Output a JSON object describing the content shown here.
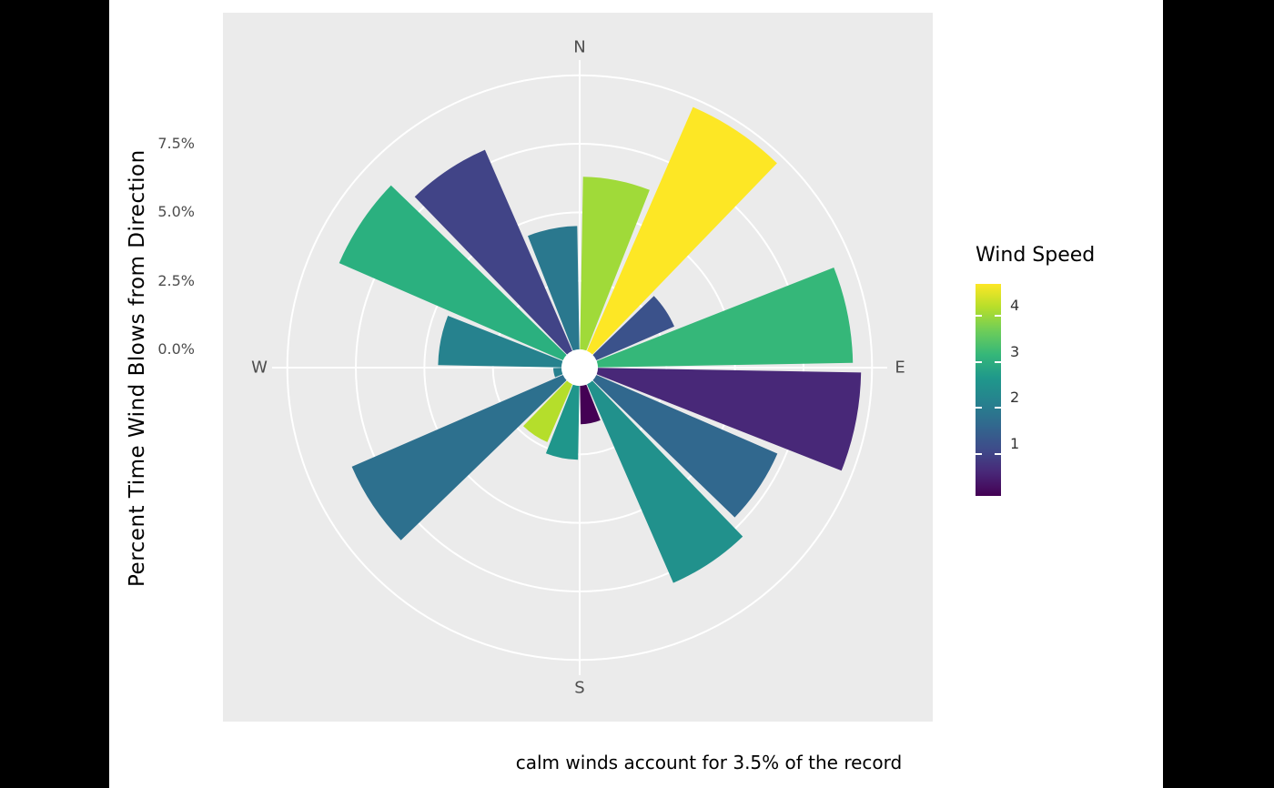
{
  "figure": {
    "background": "#000000",
    "canvas_background": "#FFFFFF",
    "panel_background": "#EBEBEB",
    "grid_color": "#FFFFFF",
    "axis_text_color": "#4D4D4D"
  },
  "chart_data": {
    "type": "bar",
    "subtype": "polar-windrose",
    "title": "",
    "ylabel": "Percent Time Wind Blows from Direction",
    "caption": "calm winds account for 3.5% of the record",
    "calm_percent": 3.5,
    "radial_axis": {
      "tick_labels": [
        "0.0%",
        "2.5%",
        "5.0%",
        "7.5%"
      ],
      "tick_values": [
        0,
        2.5,
        5.0,
        7.5
      ],
      "grid_circles_pct": [
        0,
        2.5,
        5.0,
        7.5,
        10
      ],
      "max_pct": 10
    },
    "compass": [
      {
        "label": "N",
        "bearing": 0
      },
      {
        "label": "E",
        "bearing": 90
      },
      {
        "label": "S",
        "bearing": 180
      },
      {
        "label": "W",
        "bearing": 270
      }
    ],
    "sectors": [
      {
        "arc": "N to NNE",
        "start": 0,
        "end": 22.5,
        "percent": 6.3,
        "mean_speed": 4.3,
        "color": "#A0DA39"
      },
      {
        "arc": "NNE to NE",
        "start": 22.5,
        "end": 45,
        "percent": 9.7,
        "mean_speed": 4.9,
        "color": "#FDE725"
      },
      {
        "arc": "NE to ENE",
        "start": 45,
        "end": 67.5,
        "percent": 3.1,
        "mean_speed": 1.2,
        "color": "#3B528B"
      },
      {
        "arc": "ENE to E",
        "start": 67.5,
        "end": 90,
        "percent": 9.3,
        "mean_speed": 3.8,
        "color": "#35B779"
      },
      {
        "arc": "E to ESE",
        "start": 90,
        "end": 112.5,
        "percent": 9.6,
        "mean_speed": 0.9,
        "color": "#482878"
      },
      {
        "arc": "ESE to SE",
        "start": 112.5,
        "end": 135,
        "percent": 7.2,
        "mean_speed": 1.7,
        "color": "#31688E"
      },
      {
        "arc": "SE to SSE",
        "start": 135,
        "end": 157.5,
        "percent": 7.9,
        "mean_speed": 2.5,
        "color": "#21918C"
      },
      {
        "arc": "SSE to S",
        "start": 157.5,
        "end": 180,
        "percent": 1.4,
        "mean_speed": 0.6,
        "color": "#440154"
      },
      {
        "arc": "S to SSW",
        "start": 180,
        "end": 202.5,
        "percent": 2.7,
        "mean_speed": 2.6,
        "color": "#1F968B"
      },
      {
        "arc": "SSW to SW",
        "start": 202.5,
        "end": 225,
        "percent": 2.3,
        "mean_speed": 4.5,
        "color": "#B5DE2B"
      },
      {
        "arc": "SW to WSW",
        "start": 225,
        "end": 247.5,
        "percent": 8.4,
        "mean_speed": 1.8,
        "color": "#2D708E"
      },
      {
        "arc": "WSW to W",
        "start": 247.5,
        "end": 270,
        "percent": 0.3,
        "mean_speed": 2.2,
        "color": "#27808E"
      },
      {
        "arc": "W to WNW",
        "start": 270,
        "end": 292.5,
        "percent": 4.5,
        "mean_speed": 2.1,
        "color": "#26828E"
      },
      {
        "arc": "WNW to NW",
        "start": 292.5,
        "end": 315,
        "percent": 8.9,
        "mean_speed": 3.9,
        "color": "#2BB07F"
      },
      {
        "arc": "NW to NNW",
        "start": 315,
        "end": 337.5,
        "percent": 8.0,
        "mean_speed": 1.1,
        "color": "#414487"
      },
      {
        "arc": "NNW to N",
        "start": 337.5,
        "end": 360,
        "percent": 4.5,
        "mean_speed": 2.0,
        "color": "#2A788E"
      }
    ],
    "legend": {
      "title": "Wind Speed",
      "tick_labels": [
        "4",
        "3",
        "2",
        "1"
      ],
      "gradient_top_to_bottom": [
        "#FDE725",
        "#B5DE2B",
        "#6DCD59",
        "#35B779",
        "#1F988B",
        "#26828E",
        "#31688E",
        "#3E4C8A",
        "#482878",
        "#440154"
      ]
    }
  }
}
